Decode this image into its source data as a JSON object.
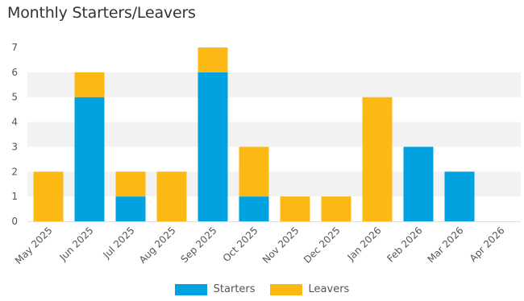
{
  "chart_data": {
    "type": "bar",
    "stacked": true,
    "title": "Monthly Starters/Leavers",
    "categories": [
      "May 2025",
      "Jun 2025",
      "Jul 2025",
      "Aug 2025",
      "Sep 2025",
      "Oct 2025",
      "Nov 2025",
      "Dec 2025",
      "Jan 2026",
      "Feb 2026",
      "Mar 2026",
      "Apr 2026"
    ],
    "series": [
      {
        "name": "Starters",
        "color": "#00a2e0",
        "values": [
          0,
          5,
          1,
          0,
          6,
          1,
          0,
          0,
          0,
          3,
          2,
          0
        ]
      },
      {
        "name": "Leavers",
        "color": "#fdb913",
        "values": [
          2,
          1,
          1,
          2,
          1,
          2,
          1,
          1,
          5,
          0,
          0,
          0
        ]
      }
    ],
    "ylim": [
      0,
      7
    ],
    "yticks": [
      0,
      1,
      2,
      3,
      4,
      5,
      6,
      7
    ],
    "xlabel": "",
    "ylabel": "",
    "grid": "alternating horizontal bands",
    "legend_position": "bottom-center"
  }
}
